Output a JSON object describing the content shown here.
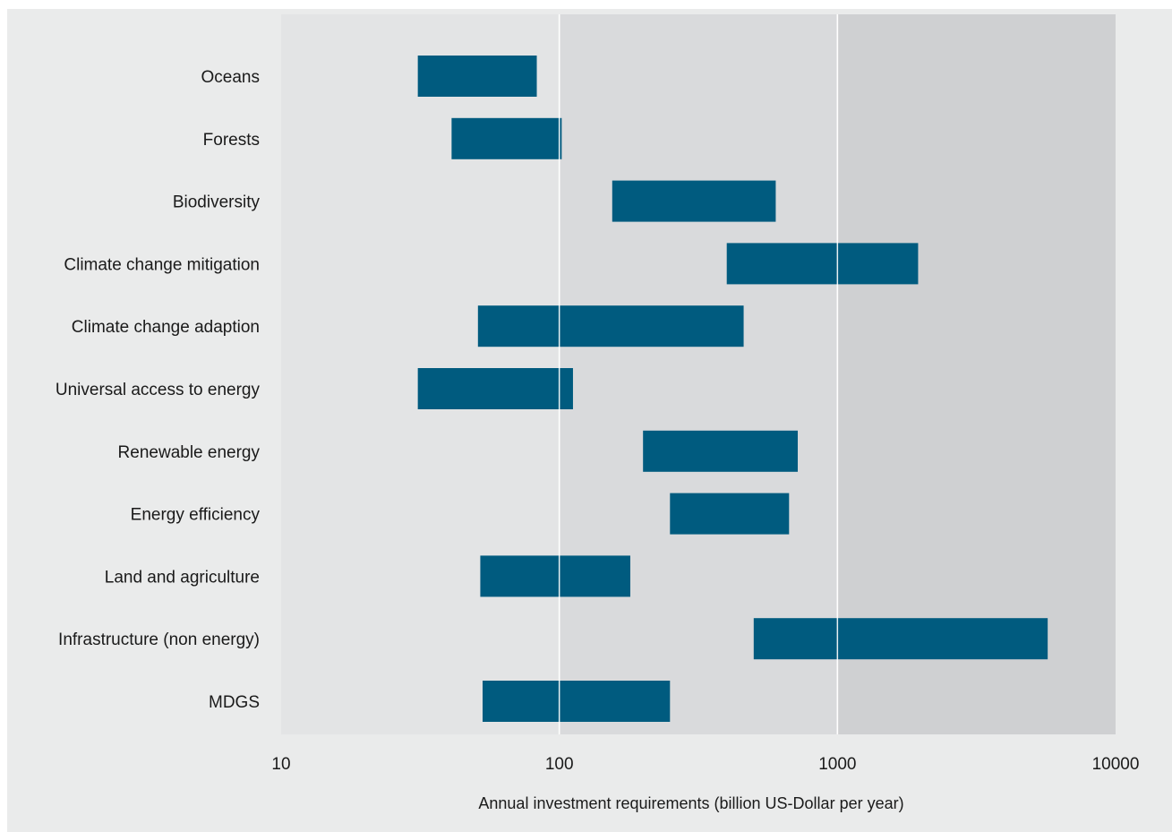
{
  "chart_data": {
    "type": "bar",
    "orientation": "horizontal",
    "subtype": "floating-range",
    "x_scale": "log",
    "xlim": [
      10,
      10000
    ],
    "x_ticks": [
      10,
      100,
      1000,
      10000
    ],
    "x_tick_labels": [
      "10",
      "100",
      "1000",
      "10000"
    ],
    "xlabel": "Annual investment requirements (billion US-Dollar per year)",
    "ylabel": "",
    "title": "",
    "grid": "vertical lines at decades",
    "bar_color": "#005b7f",
    "band_colors": [
      "#e3e4e5",
      "#d9dadc",
      "#cfd0d2"
    ],
    "categories": [
      "Oceans",
      "Forests",
      "Biodiversity",
      "Climate change mitigation",
      "Climate change adaption",
      "Universal access to energy",
      "Renewable energy",
      "Energy efficiency",
      "Land and agriculture",
      "Infrastructure (non energy)",
      "MDGS"
    ],
    "ranges": [
      [
        31,
        83
      ],
      [
        41,
        102
      ],
      [
        155,
        600
      ],
      [
        400,
        1950
      ],
      [
        51,
        460
      ],
      [
        31,
        112
      ],
      [
        200,
        720
      ],
      [
        250,
        670
      ],
      [
        52,
        180
      ],
      [
        500,
        5700
      ],
      [
        53,
        250
      ]
    ]
  }
}
